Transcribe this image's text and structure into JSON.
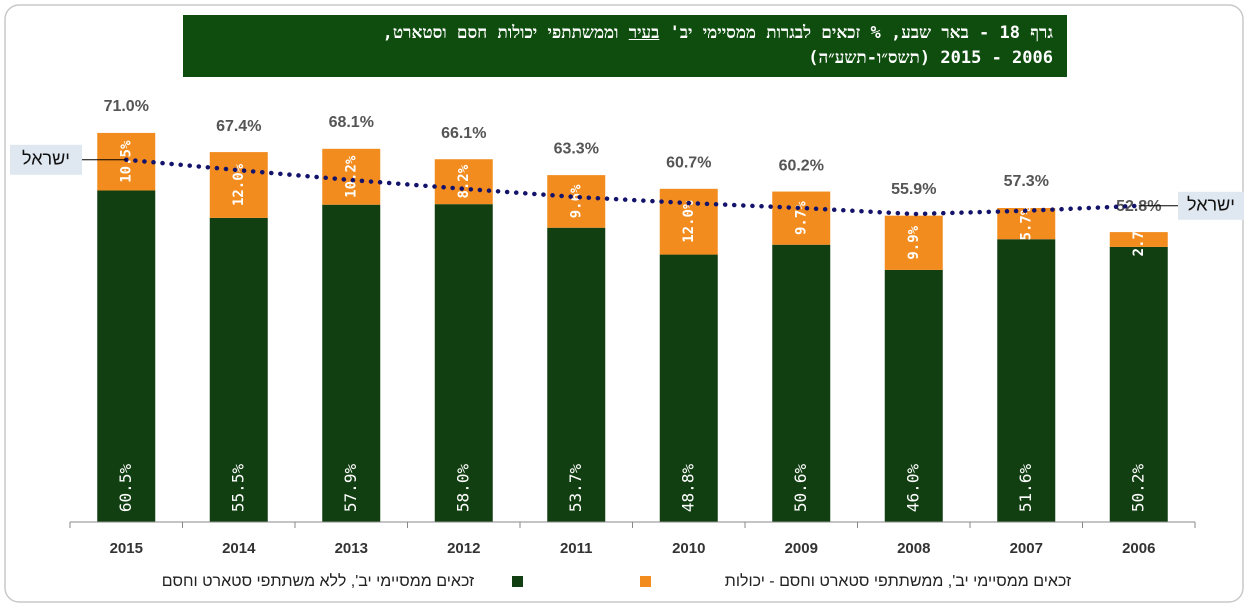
{
  "chart_data": {
    "type": "bar",
    "stacked": true,
    "title": [
      "גרף 18 - באר שבע, % זכאים לבגרות ממסיימי יב' ",
      "בעיר",
      " וממשתתפי יכולות חסם וסטארט,",
      "2006 - 2015 (תשס״ו-תשע״ה)"
    ],
    "categories": [
      "2015",
      "2014",
      "2013",
      "2012",
      "2011",
      "2010",
      "2009",
      "2008",
      "2007",
      "2006"
    ],
    "ylim": [
      0,
      76
    ],
    "series": [
      {
        "name": "זכאים ממסיימי יב', ללא משתתפי סטארט וחסם",
        "color": "#123f12",
        "values": [
          60.5,
          55.5,
          57.9,
          58.0,
          53.7,
          48.8,
          50.6,
          46.0,
          51.6,
          50.2
        ],
        "value_labels": [
          "60.5%",
          "55.5%",
          "57.9%",
          "58.0%",
          "53.7%",
          "48.8%",
          "50.6%",
          "46.0%",
          "51.6%",
          "50.2%"
        ]
      },
      {
        "name": "זכאים ממסיימי יב', ממשתתפי סטארט וחסם - יכולות",
        "color": "#f28c1e",
        "values": [
          10.5,
          12.0,
          10.2,
          8.2,
          9.6,
          12.0,
          9.7,
          9.9,
          5.7,
          2.7
        ],
        "value_labels": [
          "10.5%",
          "12.0%",
          "10.2%",
          "8.2%",
          "9.6%",
          "12.0%",
          "9.7%",
          "9.9%",
          "5.7%",
          "2.7%"
        ]
      },
      {
        "name": "ישראל",
        "type": "line",
        "color": "#13136b",
        "values": [
          66.1,
          64.2,
          62.4,
          60.8,
          59.3,
          58.2,
          57.3,
          56.2,
          56.8,
          57.7
        ]
      }
    ],
    "totals": {
      "values": [
        71.0,
        67.4,
        68.1,
        66.1,
        63.3,
        60.7,
        60.2,
        55.9,
        57.3,
        52.8
      ],
      "value_labels": [
        "71.0%",
        "67.4%",
        "68.1%",
        "66.1%",
        "63.3%",
        "60.7%",
        "60.2%",
        "55.9%",
        "57.3%",
        "52.8%"
      ]
    }
  }
}
